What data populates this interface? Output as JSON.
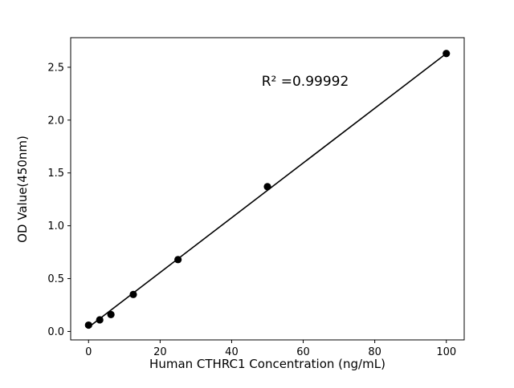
{
  "chart_data": {
    "type": "scatter",
    "title": "",
    "xlabel": "Human CTHRC1 Concentration (ng/mL)",
    "ylabel": "OD Value(450nm)",
    "annotation": "R² =0.99992",
    "x": [
      0,
      3.125,
      6.25,
      12.5,
      25,
      50,
      100
    ],
    "y": [
      0.06,
      0.11,
      0.16,
      0.35,
      0.68,
      1.37,
      2.63
    ],
    "fit_line": {
      "x0": 0,
      "y0": 0.04,
      "x1": 100,
      "y1": 2.63
    },
    "xlim": [
      -5,
      105
    ],
    "ylim": [
      -0.08,
      2.78
    ],
    "xticks": [
      0,
      20,
      40,
      60,
      80,
      100
    ],
    "xtick_labels": [
      "0",
      "20",
      "40",
      "60",
      "80",
      "100"
    ],
    "yticks": [
      0.0,
      0.5,
      1.0,
      1.5,
      2.0,
      2.5
    ],
    "ytick_labels": [
      "0.0",
      "0.5",
      "1.0",
      "1.5",
      "2.0",
      "2.5"
    ],
    "grid": false,
    "legend": "none",
    "marker_color": "#000000",
    "line_color": "#000000",
    "background_color": "#ffffff"
  }
}
